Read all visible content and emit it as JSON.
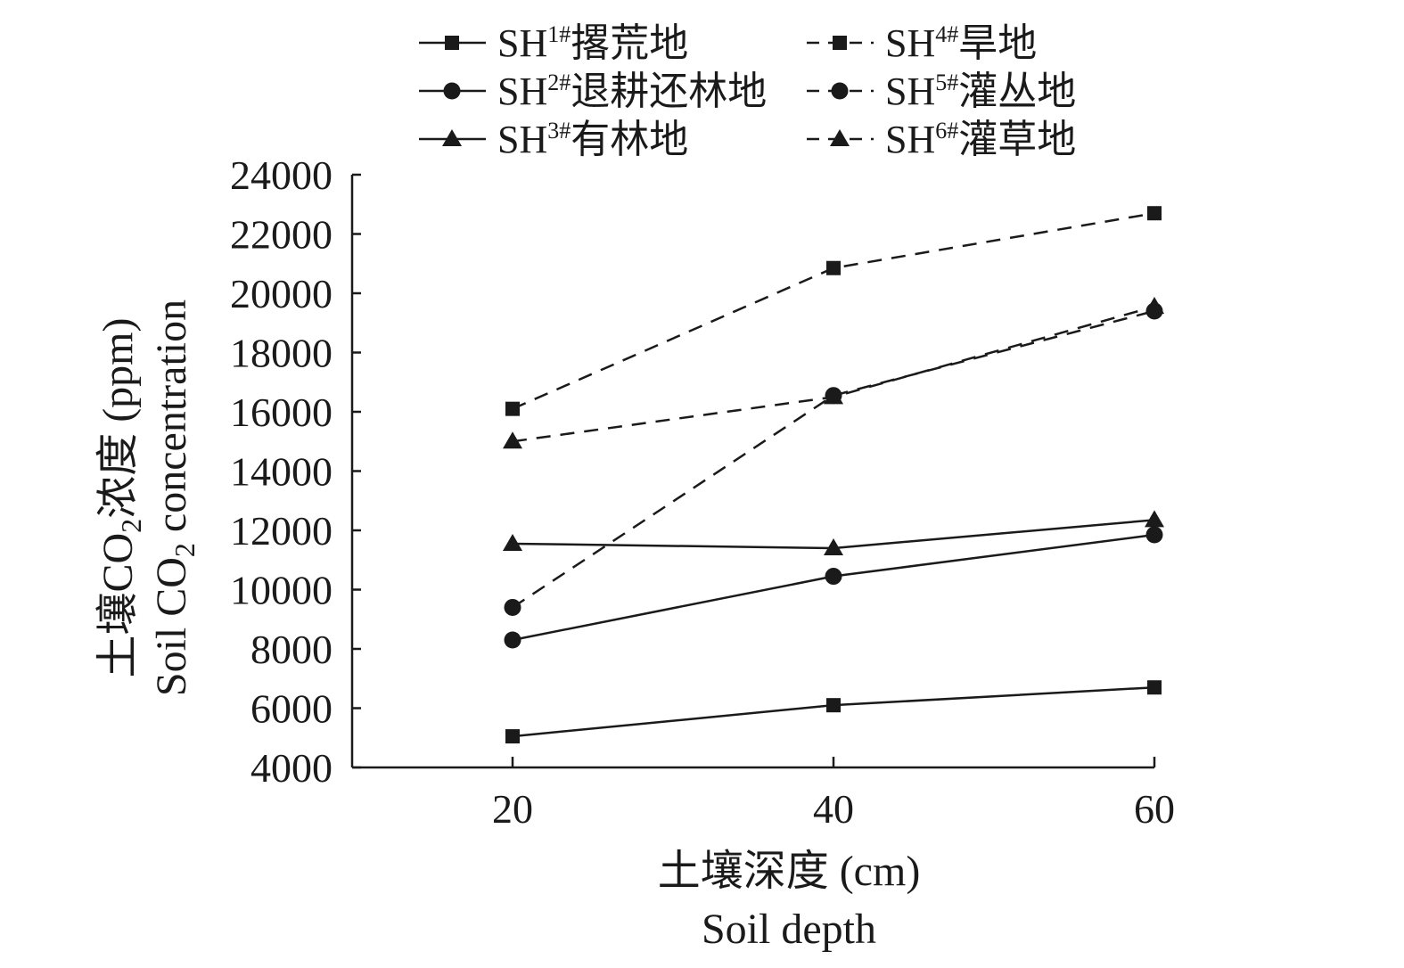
{
  "chart_data": {
    "type": "line",
    "x": [
      20,
      40,
      60
    ],
    "xlim": [
      10,
      60
    ],
    "ylim": [
      4000,
      24000
    ],
    "yticks": [
      4000,
      6000,
      8000,
      10000,
      12000,
      14000,
      16000,
      18000,
      20000,
      22000,
      24000
    ],
    "xticks": [
      20,
      40,
      60
    ],
    "xlabel": "土壤深度 (cm)",
    "xlabel_en": "Soil depth",
    "ylabel": {
      "pre": "土壤CO",
      "sub": "2",
      "post": "浓度 (ppm)"
    },
    "ylabel_en": {
      "pre": "Soil CO",
      "sub": "2",
      "post": " concentration"
    },
    "grid": false,
    "legend_position": "top",
    "series": [
      {
        "name": "SH1#撂荒地",
        "base": "SH",
        "sup": "1#",
        "label": "撂荒地",
        "marker": "square",
        "dash": false,
        "values": [
          5050,
          6100,
          6700
        ]
      },
      {
        "name": "SH2#退耕还林地",
        "base": "SH",
        "sup": "2#",
        "label": "退耕还林地",
        "marker": "circle",
        "dash": false,
        "values": [
          8300,
          10450,
          11850
        ]
      },
      {
        "name": "SH3#有林地",
        "base": "SH",
        "sup": "3#",
        "label": "有林地",
        "marker": "triangle",
        "dash": false,
        "values": [
          11550,
          11400,
          12350
        ]
      },
      {
        "name": "SH4#旱地",
        "base": "SH",
        "sup": "4#",
        "label": "旱地",
        "marker": "square",
        "dash": true,
        "values": [
          16100,
          20850,
          22700
        ]
      },
      {
        "name": "SH5#灌丛地",
        "base": "SH",
        "sup": "5#",
        "label": "灌丛地",
        "marker": "circle",
        "dash": true,
        "values": [
          9400,
          16550,
          19400
        ]
      },
      {
        "name": "SH6#灌草地",
        "base": "SH",
        "sup": "6#",
        "label": "灌草地",
        "marker": "triangle",
        "dash": true,
        "values": [
          15000,
          16500,
          19550
        ]
      }
    ],
    "colors": {
      "line": "#1a1a1a",
      "background": "#ffffff"
    }
  }
}
